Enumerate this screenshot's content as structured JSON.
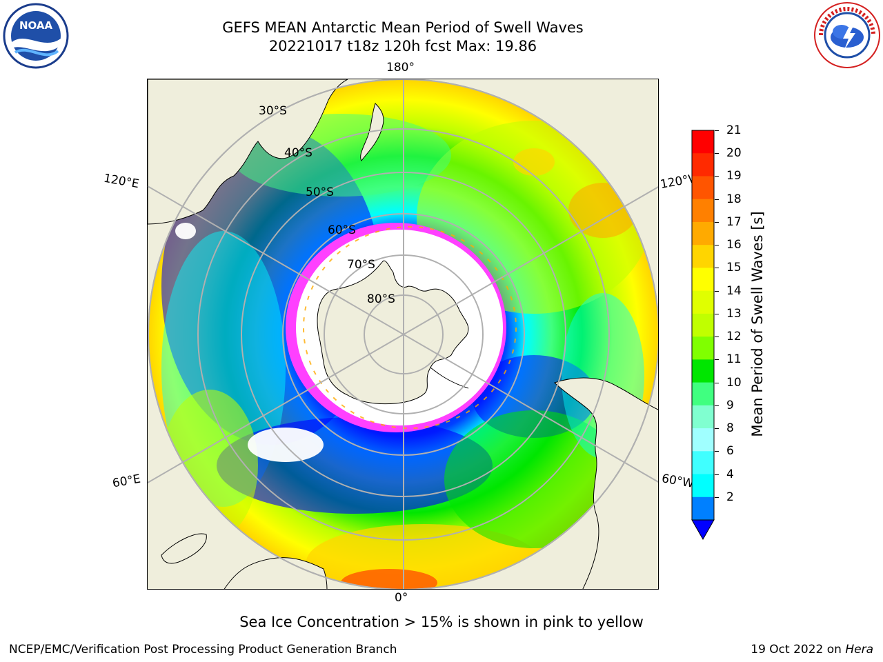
{
  "header": {
    "title_line1": "GEFS MEAN Antarctic Mean Period of Swell Waves",
    "title_line2": "20221017 t18z 120h fcst   Max: 19.86"
  },
  "logos": {
    "left": "NOAA",
    "right": "NATIONAL WEATHER SERVICE"
  },
  "map": {
    "projection": "south-polar-stereographic",
    "longitude_labels": {
      "top": "180°",
      "bottom": "0°",
      "upper_left": "120°E",
      "upper_right": "120°W",
      "lower_left": "60°E",
      "lower_right": "60°W"
    },
    "latitude_labels": [
      "30°S",
      "40°S",
      "50°S",
      "60°S",
      "70°S",
      "80°S"
    ],
    "land_color": "#efeedc",
    "ocean_missing_color": "#ffffff",
    "sea_ice_color": "#ff40ff"
  },
  "colorbar": {
    "title": "Mean Period of Swell Waves [s]",
    "ticks": [
      "21",
      "20",
      "19",
      "18",
      "17",
      "16",
      "15",
      "14",
      "13",
      "12",
      "11",
      "10",
      "9",
      "8",
      "6",
      "4",
      "2"
    ],
    "colors_top_to_bottom": [
      "#ff0000",
      "#ff2a00",
      "#ff5500",
      "#ff8000",
      "#ffaa00",
      "#ffd500",
      "#ffff00",
      "#e0ff00",
      "#c0ff00",
      "#80ff00",
      "#00e600",
      "#40ff80",
      "#80ffd0",
      "#a0ffff",
      "#40ffff",
      "#00ffff",
      "#0080ff"
    ],
    "under_color": "#0000ff"
  },
  "footer": {
    "note": "Sea Ice Concentration > 15% is shown in pink to yellow",
    "credit": "NCEP/EMC/Verification Post Processing Product Generation Branch",
    "date": "19 Oct 2022 on ",
    "machine": "Hera"
  }
}
